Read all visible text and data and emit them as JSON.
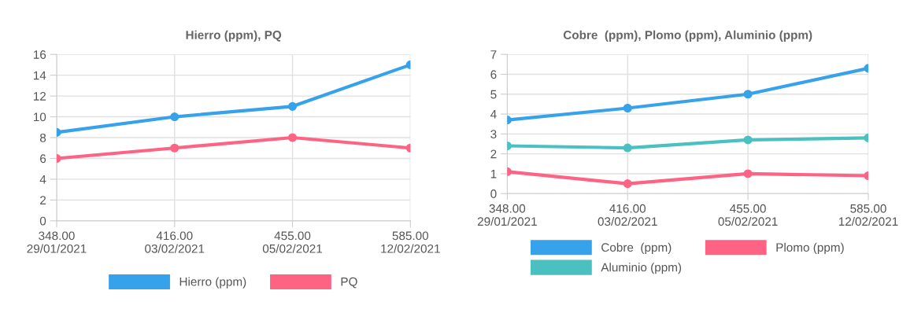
{
  "chart_data": [
    {
      "type": "line",
      "title": "Hierro (ppm), PQ",
      "categories": [
        "348.00\n29/01/2021",
        "416.00\n03/02/2021",
        "455.00\n05/02/2021",
        "585.00\n12/02/2021"
      ],
      "series": [
        {
          "name": "Hierro (ppm)",
          "color": "#36a2eb",
          "values": [
            8.5,
            10,
            11,
            15
          ]
        },
        {
          "name": "PQ",
          "color": "#ff6384",
          "values": [
            6,
            7,
            8,
            7
          ]
        }
      ],
      "ylim": [
        0,
        16
      ],
      "yticks": [
        0,
        2,
        4,
        6,
        8,
        10,
        12,
        14,
        16
      ],
      "grid": true,
      "legend": "bottom",
      "marker": "circle"
    },
    {
      "type": "line",
      "title": "Cobre  (ppm), Plomo (ppm), Aluminio (ppm)",
      "categories": [
        "348.00\n29/01/2021",
        "416.00\n03/02/2021",
        "455.00\n05/02/2021",
        "585.00\n12/02/2021"
      ],
      "series": [
        {
          "name": "Cobre  (ppm)",
          "color": "#36a2eb",
          "values": [
            3.7,
            4.3,
            5.0,
            6.3
          ]
        },
        {
          "name": "Plomo (ppm)",
          "color": "#ff6384",
          "values": [
            1.1,
            0.5,
            1.0,
            0.9
          ]
        },
        {
          "name": "Aluminio (ppm)",
          "color": "#4bc0c0",
          "values": [
            2.4,
            2.3,
            2.7,
            2.8
          ]
        }
      ],
      "ylim": [
        0,
        7
      ],
      "yticks": [
        0,
        1,
        2,
        3,
        4,
        5,
        6,
        7
      ],
      "grid": true,
      "legend": "bottom",
      "marker": "circle"
    }
  ]
}
